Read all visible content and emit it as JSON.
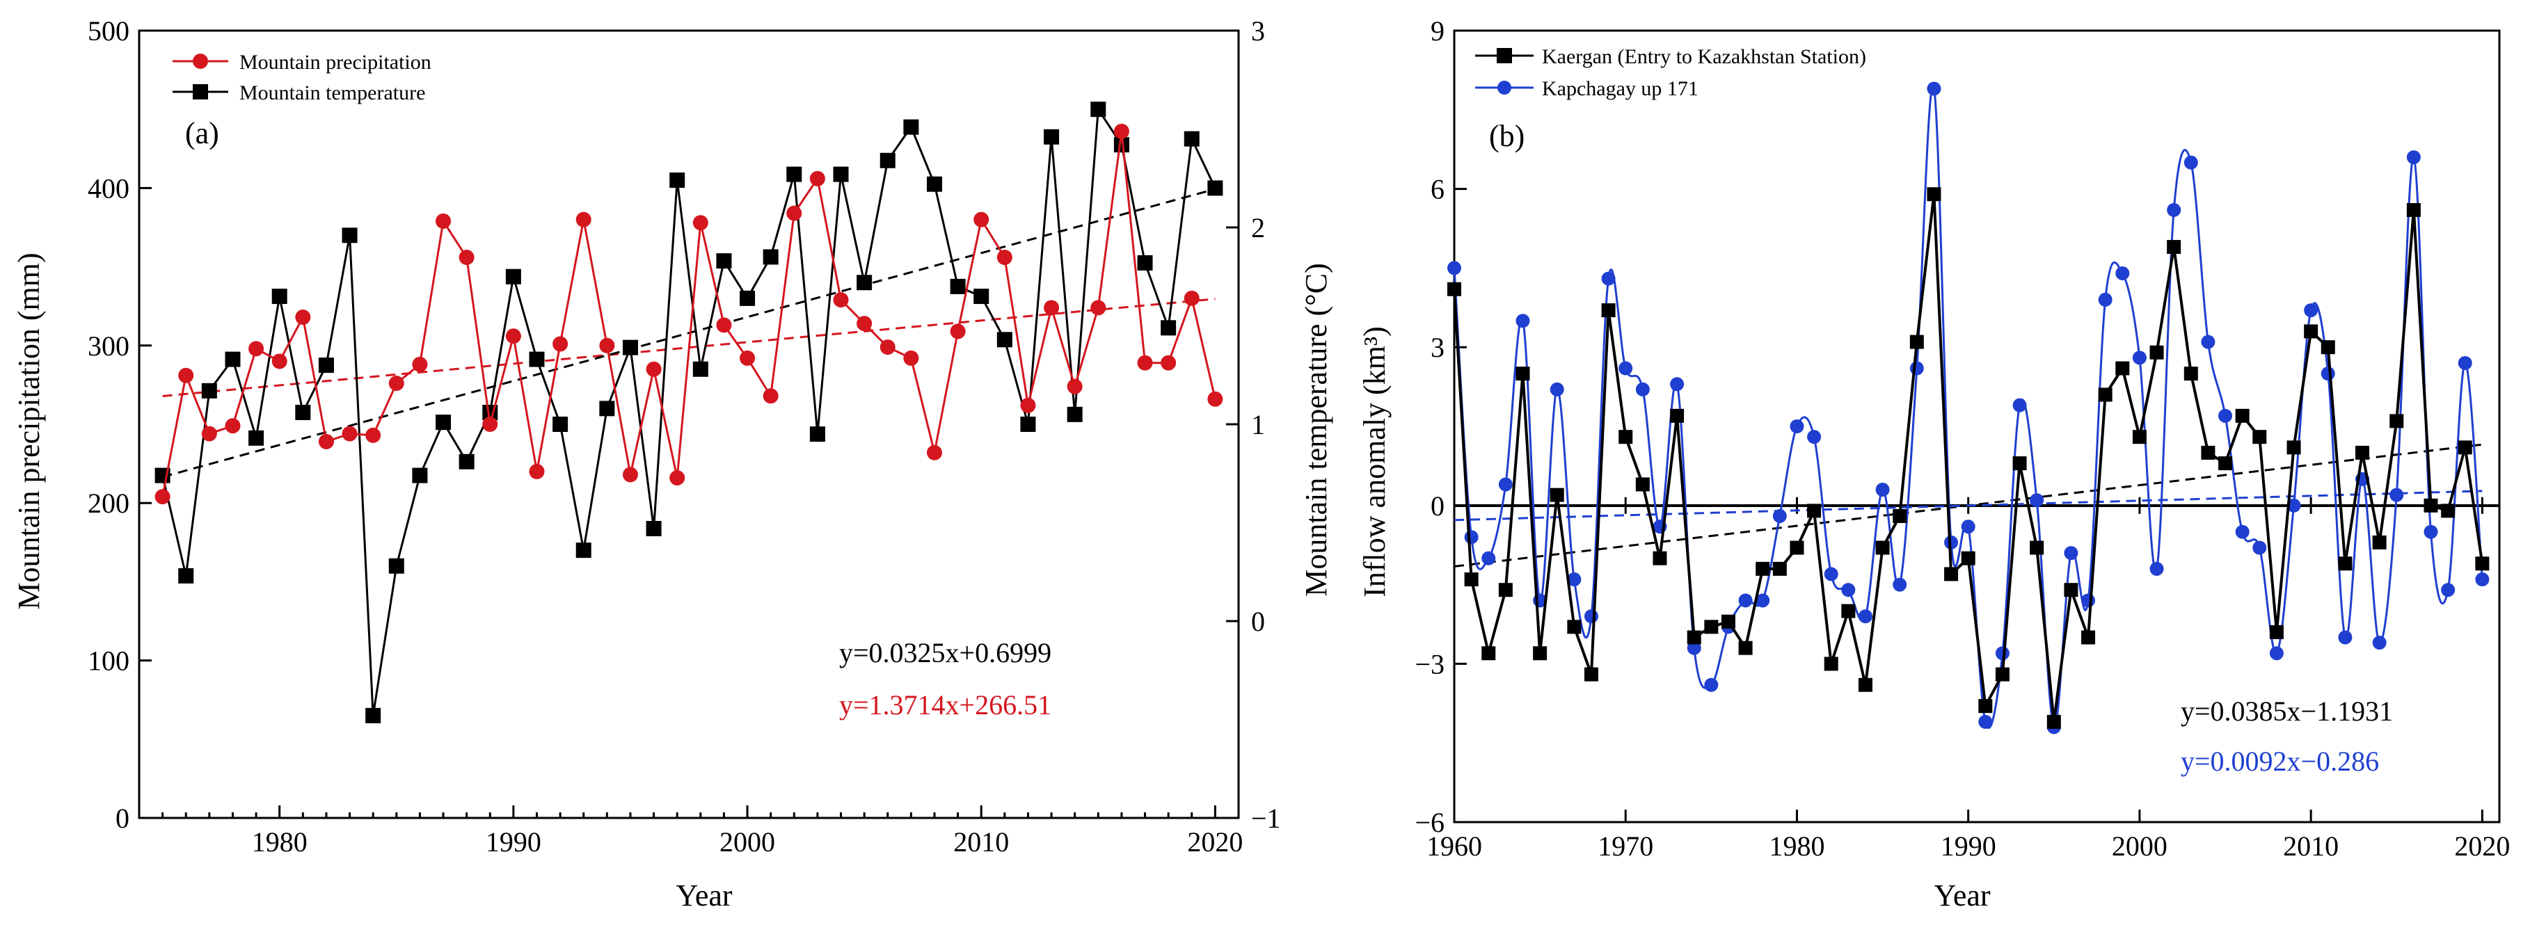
{
  "colors": {
    "red": "#d4161e",
    "black": "#000000",
    "blue": "#1f3fd0"
  },
  "chart_data": [
    {
      "type": "line",
      "panel_label": "(a)",
      "xlabel": "Year",
      "ylabel": "Mountain precipitation (mm)",
      "y2label": "Mountain temperature (°C)",
      "xlim": [
        1974,
        2021
      ],
      "ylim": [
        0,
        500
      ],
      "y2lim": [
        -1,
        3
      ],
      "x_ticks": [
        1980,
        1990,
        2000,
        2010,
        2020
      ],
      "y_ticks": [
        0,
        100,
        200,
        300,
        400,
        500
      ],
      "y2_ticks": [
        -1,
        0,
        1,
        2,
        3
      ],
      "legend_position": "top-left",
      "grid": false,
      "series": [
        {
          "name": "Mountain precipitation",
          "axis": "left",
          "color": "#d4161e",
          "marker": "circle",
          "x": [
            1975,
            1976,
            1977,
            1978,
            1979,
            1980,
            1981,
            1982,
            1983,
            1984,
            1985,
            1986,
            1987,
            1988,
            1989,
            1990,
            1991,
            1992,
            1993,
            1994,
            1995,
            1996,
            1997,
            1998,
            1999,
            2000,
            2001,
            2002,
            2003,
            2004,
            2005,
            2006,
            2007,
            2008,
            2009,
            2010,
            2011,
            2012,
            2013,
            2014,
            2015,
            2016,
            2017,
            2018,
            2019,
            2020
          ],
          "values": [
            204,
            281,
            244,
            249,
            298,
            290,
            318,
            239,
            244,
            243,
            276,
            288,
            379,
            356,
            250,
            306,
            220,
            301,
            380,
            300,
            218,
            285,
            216,
            378,
            313,
            292,
            268,
            384,
            406,
            329,
            314,
            299,
            292,
            232,
            309,
            380,
            356,
            262,
            324,
            274,
            324,
            436,
            289,
            289,
            330,
            266
          ],
          "trend": {
            "slope": 1.3714,
            "intercept": 266.51,
            "x0": 1975,
            "x_start": 1975,
            "x_end": 2020,
            "equation": "y=1.3714x+266.51"
          }
        },
        {
          "name": "Mountain temperature",
          "axis": "right",
          "color": "#000000",
          "marker": "square",
          "x": [
            1975,
            1976,
            1977,
            1978,
            1979,
            1980,
            1981,
            1982,
            1983,
            1984,
            1985,
            1986,
            1987,
            1988,
            1989,
            1990,
            1991,
            1992,
            1993,
            1994,
            1995,
            1996,
            1997,
            1998,
            1999,
            2000,
            2001,
            2002,
            2003,
            2004,
            2005,
            2006,
            2007,
            2008,
            2009,
            2010,
            2011,
            2012,
            2013,
            2014,
            2015,
            2016,
            2017,
            2018,
            2019,
            2020
          ],
          "values": [
            0.74,
            0.23,
            1.17,
            1.33,
            0.93,
            1.65,
            1.06,
            1.3,
            1.96,
            -0.48,
            0.28,
            0.74,
            1.01,
            0.81,
            1.06,
            1.75,
            1.33,
            1.0,
            0.36,
            1.08,
            1.39,
            0.47,
            2.24,
            1.28,
            1.83,
            1.64,
            1.85,
            2.27,
            0.95,
            2.27,
            1.72,
            2.34,
            2.51,
            2.22,
            1.7,
            1.65,
            1.43,
            1.0,
            2.46,
            1.05,
            2.6,
            2.42,
            1.82,
            1.49,
            2.45,
            2.2
          ],
          "trend": {
            "slope": 0.0325,
            "intercept": 0.6999,
            "x0": 1975,
            "x_start": 1975,
            "x_end": 2020,
            "equation": "y=0.0325x+0.6999"
          }
        }
      ]
    },
    {
      "type": "line",
      "panel_label": "(b)",
      "xlabel": "Year",
      "ylabel": "Inflow anomaly (km³)",
      "xlim": [
        1960,
        2021
      ],
      "ylim": [
        -6,
        9
      ],
      "x_ticks": [
        1960,
        1970,
        1980,
        1990,
        2000,
        2010,
        2020
      ],
      "y_ticks": [
        -6,
        -3,
        0,
        3,
        6,
        9
      ],
      "legend_position": "top-left",
      "grid": false,
      "series": [
        {
          "name": "Kaergan (Entry to Kazakhstan Station)",
          "color": "#000000",
          "marker": "square",
          "x": [
            1960,
            1961,
            1962,
            1963,
            1964,
            1965,
            1966,
            1967,
            1968,
            1969,
            1970,
            1971,
            1972,
            1973,
            1974,
            1975,
            1976,
            1977,
            1978,
            1979,
            1980,
            1981,
            1982,
            1983,
            1984,
            1985,
            1986,
            1987,
            1988,
            1989,
            1990,
            1991,
            1992,
            1993,
            1994,
            1995,
            1996,
            1997,
            1998,
            1999,
            2000,
            2001,
            2002,
            2003,
            2004,
            2005,
            2006,
            2007,
            2008,
            2009,
            2010,
            2011,
            2012,
            2013,
            2014,
            2015,
            2016,
            2017,
            2018,
            2019,
            2020
          ],
          "values": [
            4.1,
            -1.4,
            -2.8,
            -1.6,
            2.5,
            -2.8,
            0.2,
            -2.3,
            -3.2,
            3.7,
            1.3,
            0.4,
            -1.0,
            1.7,
            -2.5,
            -2.3,
            -2.2,
            -2.7,
            -1.2,
            -1.2,
            -0.8,
            -0.1,
            -3.0,
            -2.0,
            -3.4,
            -0.8,
            -0.2,
            3.1,
            5.9,
            -1.3,
            -1.0,
            -3.8,
            -3.2,
            0.8,
            -0.8,
            -4.1,
            -1.6,
            -2.5,
            2.1,
            2.6,
            1.3,
            2.9,
            4.9,
            2.5,
            1.0,
            0.8,
            1.7,
            1.3,
            -2.4,
            1.1,
            3.3,
            3.0,
            -1.1,
            1.0,
            -0.7,
            1.6,
            5.6,
            0.0,
            -0.1,
            1.1,
            -1.1
          ],
          "trend": {
            "slope": 0.0385,
            "intercept": -1.1931,
            "x0": 1960,
            "x_start": 1960,
            "x_end": 2020,
            "equation": "y=0.0385x−1.1931"
          }
        },
        {
          "name": "Kapchagay up 171",
          "color": "#1f3fd0",
          "marker": "circle",
          "x": [
            1960,
            1961,
            1962,
            1963,
            1964,
            1965,
            1966,
            1967,
            1968,
            1969,
            1970,
            1971,
            1972,
            1973,
            1974,
            1975,
            1976,
            1977,
            1978,
            1979,
            1980,
            1981,
            1982,
            1983,
            1984,
            1985,
            1986,
            1987,
            1988,
            1989,
            1990,
            1991,
            1992,
            1993,
            1994,
            1995,
            1996,
            1997,
            1998,
            1999,
            2000,
            2001,
            2002,
            2003,
            2004,
            2005,
            2006,
            2007,
            2008,
            2009,
            2010,
            2011,
            2012,
            2013,
            2014,
            2015,
            2016,
            2017,
            2018,
            2019,
            2020
          ],
          "values": [
            4.5,
            -0.6,
            -1.0,
            0.4,
            3.5,
            -1.8,
            2.2,
            -1.4,
            -2.1,
            4.3,
            2.6,
            2.2,
            -0.4,
            2.3,
            -2.7,
            -3.4,
            -2.3,
            -1.8,
            -1.8,
            -0.2,
            1.5,
            1.3,
            -1.3,
            -1.6,
            -2.1,
            0.3,
            -1.5,
            2.6,
            7.9,
            -0.7,
            -0.4,
            -4.1,
            -2.8,
            1.9,
            0.1,
            -4.2,
            -0.9,
            -1.8,
            3.9,
            4.4,
            2.8,
            -1.2,
            5.6,
            6.5,
            3.1,
            1.7,
            -0.5,
            -0.8,
            -2.8,
            0.0,
            3.7,
            2.5,
            -2.5,
            0.5,
            -2.6,
            0.2,
            6.6,
            -0.5,
            -1.6,
            2.7,
            -1.4
          ],
          "trend": {
            "slope": 0.0092,
            "intercept": -0.286,
            "x0": 1960,
            "x_start": 1960,
            "x_end": 2020,
            "equation": "y=0.0092x−0.286"
          }
        }
      ]
    }
  ]
}
